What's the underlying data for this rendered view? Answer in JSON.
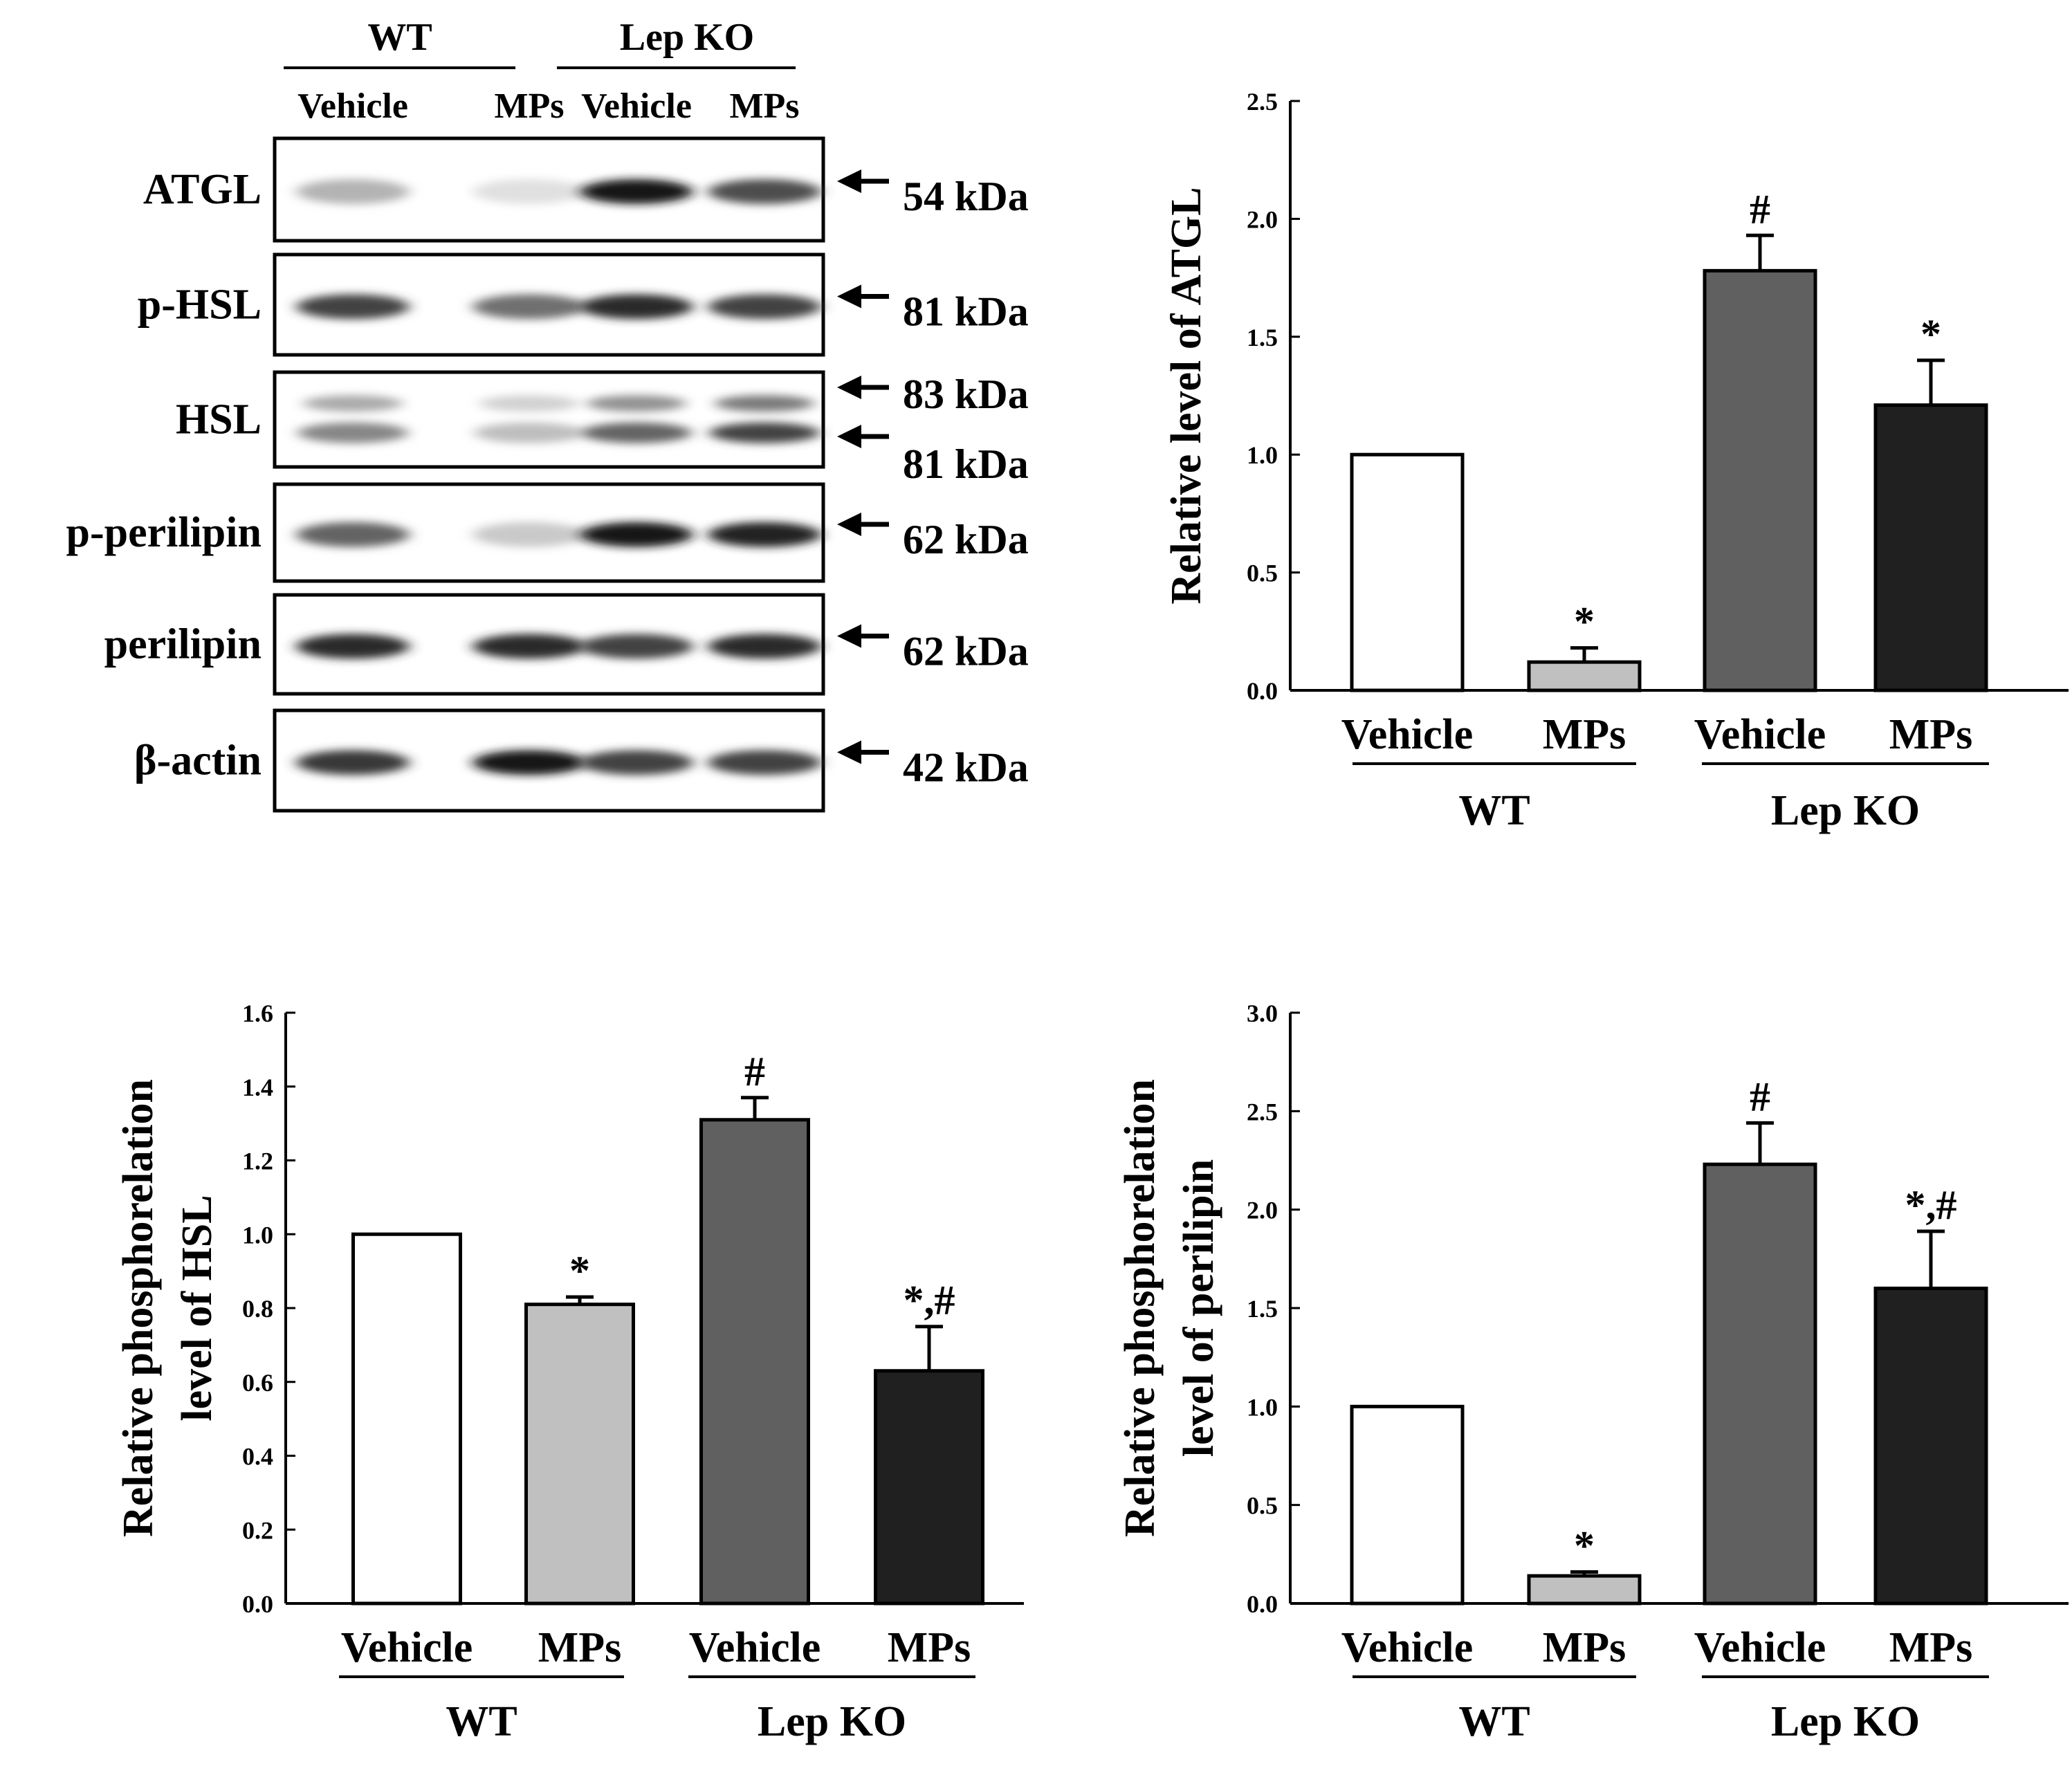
{
  "groups": [
    "WT",
    "Lep KO"
  ],
  "treatments": [
    "Vehicle",
    "MPs",
    "Vehicle",
    "MPs"
  ],
  "colors": {
    "wt_vehicle": "#ffffff",
    "wt_mps": "#c0c0c0",
    "ko_vehicle": "#606060",
    "ko_mps": "#202020"
  },
  "western_blot": {
    "header_groups": [
      "WT",
      "Lep KO"
    ],
    "lane_labels": [
      "Vehicle",
      "MPs",
      "Vehicle",
      "MPs"
    ],
    "rows": [
      {
        "label": "ATGL",
        "markers": [
          "54 kDa"
        ],
        "band_intensity": [
          0.25,
          0.05,
          0.95,
          0.7
        ]
      },
      {
        "label": "p-HSL",
        "markers": [
          "81 kDa"
        ],
        "band_intensity": [
          0.75,
          0.55,
          0.85,
          0.75
        ]
      },
      {
        "label": "HSL",
        "markers": [
          "83 kDa",
          "81 kDa"
        ],
        "band_intensity": [
          0.45,
          0.2,
          0.6,
          0.75
        ]
      },
      {
        "label": "p-perilipin",
        "markers": [
          "62 kDa"
        ],
        "band_intensity": [
          0.6,
          0.15,
          0.95,
          0.9
        ]
      },
      {
        "label": "perilipin",
        "markers": [
          "62 kDa"
        ],
        "band_intensity": [
          0.85,
          0.85,
          0.75,
          0.85
        ]
      },
      {
        "label": "β-actin",
        "markers": [
          "42 kDa"
        ],
        "band_intensity": [
          0.8,
          0.95,
          0.75,
          0.75
        ]
      }
    ]
  },
  "chart_data": [
    {
      "type": "bar",
      "title": "",
      "ylabel": "Relative level of ATGL",
      "ylabel_lines": [
        "Relative level of ATGL"
      ],
      "xlabel": "",
      "categories": [
        "Vehicle",
        "MPs",
        "Vehicle",
        "MPs"
      ],
      "groups": [
        "WT",
        "Lep KO"
      ],
      "values": [
        1.0,
        0.12,
        1.78,
        1.21
      ],
      "errors": [
        0,
        0.06,
        0.15,
        0.19
      ],
      "annotations": [
        "",
        "*",
        "#",
        "*"
      ],
      "ylim": [
        0,
        2.5
      ],
      "yticks": [
        "0.0",
        "0.5",
        "1.0",
        "1.5",
        "2.0",
        "2.5"
      ]
    },
    {
      "type": "bar",
      "title": "",
      "ylabel": "Relative phosphorelation level of HSL",
      "ylabel_lines": [
        "Relative phosphorelation",
        "level of HSL"
      ],
      "xlabel": "",
      "categories": [
        "Vehicle",
        "MPs",
        "Vehicle",
        "MPs"
      ],
      "groups": [
        "WT",
        "Lep KO"
      ],
      "values": [
        1.0,
        0.81,
        1.31,
        0.63
      ],
      "errors": [
        0,
        0.02,
        0.06,
        0.12
      ],
      "annotations": [
        "",
        "*",
        "#",
        "*,#"
      ],
      "ylim": [
        0,
        1.6
      ],
      "yticks": [
        "0.0",
        "0.2",
        "0.4",
        "0.6",
        "0.8",
        "1.0",
        "1.2",
        "1.4",
        "1.6"
      ]
    },
    {
      "type": "bar",
      "title": "",
      "ylabel": "Relative phosphorelation level of perilipin",
      "ylabel_lines": [
        "Relative phosphorelation",
        "level of perilipin"
      ],
      "xlabel": "",
      "categories": [
        "Vehicle",
        "MPs",
        "Vehicle",
        "MPs"
      ],
      "groups": [
        "WT",
        "Lep KO"
      ],
      "values": [
        1.0,
        0.14,
        2.23,
        1.6
      ],
      "errors": [
        0,
        0.02,
        0.21,
        0.29
      ],
      "annotations": [
        "",
        "*",
        "#",
        "*,#"
      ],
      "ylim": [
        0,
        3.0
      ],
      "yticks": [
        "0.0",
        "0.5",
        "1.0",
        "1.5",
        "2.0",
        "2.5",
        "3.0"
      ]
    }
  ]
}
